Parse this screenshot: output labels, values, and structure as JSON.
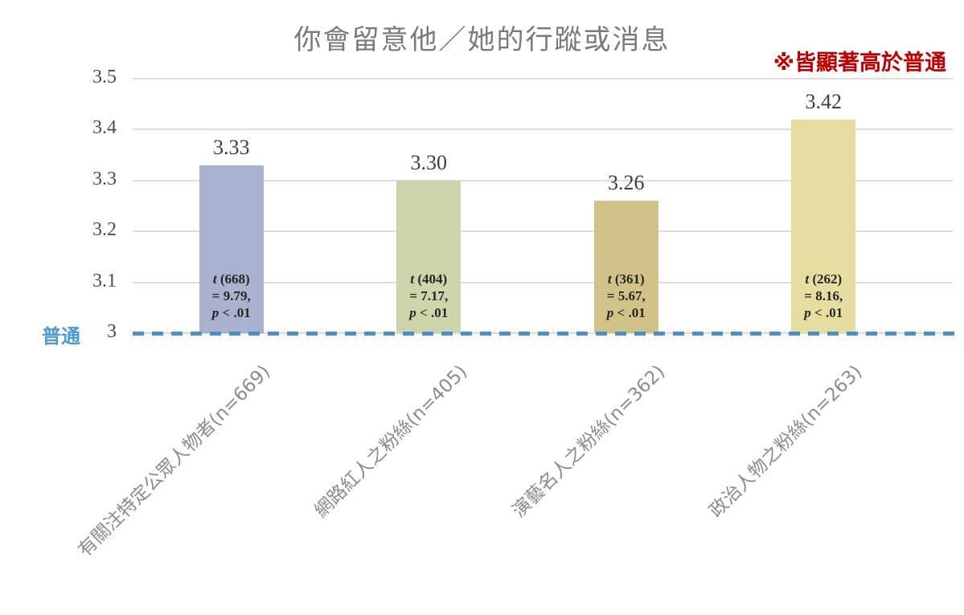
{
  "chart": {
    "title": "你會留意他／她的行蹤或消息",
    "annotation": "※皆顯著高於普通",
    "baseline_label": "普通"
  },
  "chart_data": {
    "type": "bar",
    "title": "你會留意他／她的行蹤或消息",
    "annotation": "※皆顯著高於普通",
    "categories": [
      "有關注特定公眾人物者(n=669)",
      "網路紅人之粉絲(n=405)",
      "演藝名人之粉絲(n=362)",
      "政治人物之粉絲(n=263)"
    ],
    "values": [
      3.33,
      3.3,
      3.26,
      3.42
    ],
    "value_labels": [
      "3.33",
      "3.30",
      "3.26",
      "3.42"
    ],
    "bar_stats": [
      [
        "t (668)",
        "= 9.79,",
        "p < .01"
      ],
      [
        "t (404)",
        "= 7.17,",
        "p < .01"
      ],
      [
        "t (361)",
        "= 5.67,",
        "p < .01"
      ],
      [
        "t (262)",
        "= 8.16,",
        "p < .01"
      ]
    ],
    "bar_colors": [
      "#a9b2ce",
      "#cdd6aa",
      "#d1c288",
      "#e7dda1"
    ],
    "ylim": [
      3,
      3.5
    ],
    "yticks": [
      3,
      3.1,
      3.2,
      3.3,
      3.4,
      3.5
    ],
    "ytick_labels": [
      "3",
      "3.1",
      "3.2",
      "3.3",
      "3.4",
      "3.5"
    ],
    "baseline": {
      "value": 3,
      "label": "普通",
      "style": "dashed",
      "color": "#4a8fc9"
    },
    "grid": true,
    "legend": false,
    "xlabel": "",
    "ylabel": "",
    "colors": {
      "title": "#7a7a7a",
      "annotation": "#c00000",
      "baseline_label": "#4a9ad5"
    }
  }
}
